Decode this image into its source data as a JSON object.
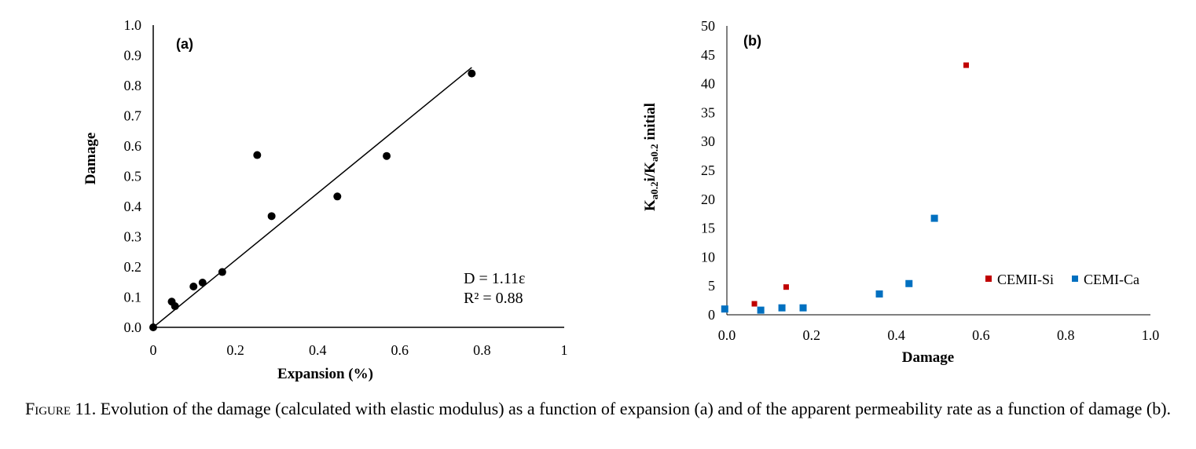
{
  "chart_data": [
    {
      "type": "scatter",
      "panel_label": "(a)",
      "xlabel": "Expansion (%)",
      "ylabel": "Damage",
      "xlim": [
        0,
        1
      ],
      "ylim": [
        0,
        1
      ],
      "x_ticks": [
        0,
        0.2,
        0.4,
        0.6,
        0.8,
        1
      ],
      "x_tick_labels": [
        "0",
        "0.2",
        "0.4",
        "0.6",
        "0.8",
        "1"
      ],
      "y_ticks": [
        0,
        0.1,
        0.2,
        0.3,
        0.4,
        0.5,
        0.6,
        0.7,
        0.8,
        0.9,
        1.0
      ],
      "y_tick_labels": [
        "0.0",
        "0.1",
        "0.2",
        "0.3",
        "0.4",
        "0.5",
        "0.6",
        "0.7",
        "0.8",
        "0.9",
        "1.0"
      ],
      "grid": false,
      "series": [
        {
          "color": "#000000",
          "marker": "circle",
          "points": [
            {
              "x": 0.0,
              "y": 0.0
            },
            {
              "x": 0.045,
              "y": 0.085
            },
            {
              "x": 0.053,
              "y": 0.07
            },
            {
              "x": 0.098,
              "y": 0.135
            },
            {
              "x": 0.12,
              "y": 0.148
            },
            {
              "x": 0.168,
              "y": 0.183
            },
            {
              "x": 0.253,
              "y": 0.57
            },
            {
              "x": 0.288,
              "y": 0.368
            },
            {
              "x": 0.448,
              "y": 0.433
            },
            {
              "x": 0.568,
              "y": 0.567
            },
            {
              "x": 0.775,
              "y": 0.84
            }
          ]
        }
      ],
      "trendline": {
        "x": [
          0,
          0.775
        ],
        "y": [
          0,
          0.86
        ],
        "color": "#000000"
      },
      "annotations": [
        "D = 1.11ε",
        "R² = 0.88"
      ]
    },
    {
      "type": "scatter",
      "panel_label": "(b)",
      "xlabel": "Damage",
      "ylabel_main": "K",
      "ylabel_sub1": "a0.2",
      "ylabel_mid": "i/K",
      "ylabel_sub2": "a0.2",
      "ylabel_tail": " initial",
      "xlim": [
        0,
        1
      ],
      "ylim": [
        0,
        50
      ],
      "x_ticks": [
        0,
        0.2,
        0.4,
        0.6,
        0.8,
        1.0
      ],
      "x_tick_labels": [
        "0.0",
        "0.2",
        "0.4",
        "0.6",
        "0.8",
        "1.0"
      ],
      "y_ticks": [
        0,
        5,
        10,
        15,
        20,
        25,
        30,
        35,
        40,
        45,
        50
      ],
      "y_tick_labels": [
        "0",
        "5",
        "10",
        "15",
        "20",
        "25",
        "30",
        "35",
        "40",
        "45",
        "50"
      ],
      "grid": false,
      "legend_position": "right",
      "series": [
        {
          "name": "CEMII-Si",
          "color": "#c00000",
          "marker": "square",
          "points": [
            {
              "x": 0.065,
              "y": 1.9
            },
            {
              "x": 0.14,
              "y": 4.8
            },
            {
              "x": 0.565,
              "y": 43.2
            }
          ]
        },
        {
          "name": "CEMI-Ca",
          "color": "#0070c0",
          "marker": "square",
          "points": [
            {
              "x": -0.005,
              "y": 1.0
            },
            {
              "x": 0.08,
              "y": 0.8
            },
            {
              "x": 0.13,
              "y": 1.2
            },
            {
              "x": 0.18,
              "y": 1.2
            },
            {
              "x": 0.36,
              "y": 3.6
            },
            {
              "x": 0.43,
              "y": 5.4
            },
            {
              "x": 0.49,
              "y": 16.7
            }
          ]
        }
      ]
    }
  ],
  "caption": {
    "figure_label": "Figure 11",
    "text": ". Evolution of the damage (calculated with elastic modulus) as a function of expansion (a) and of the apparent permeability rate as a function of damage (b)."
  }
}
